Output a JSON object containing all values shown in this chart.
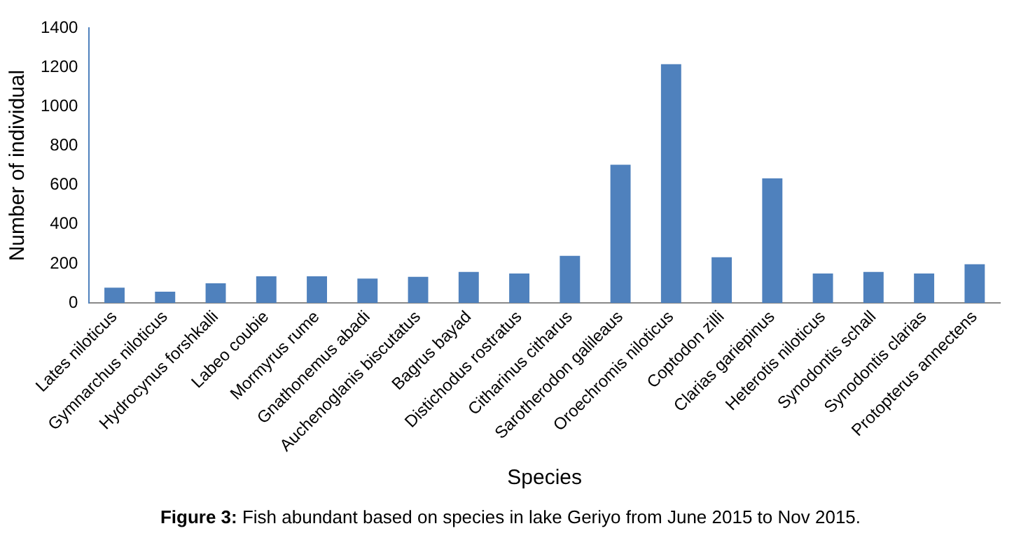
{
  "chart_data": {
    "type": "bar",
    "xlabel": "Species",
    "ylabel": "Number of individual",
    "categories": [
      "Lates niloticus",
      "Gymnarchus niloticus",
      "Hydrocynus forshkalli",
      "Labeo coubie",
      "Mormyrus rume",
      "Gnathonemus abadi",
      "Auchenoglanis biscutatus",
      "Bagrus bayad",
      "Distichodus rostratus",
      "Citharinus citharus",
      "Sarotherodon galileaus",
      "Oroechromis niloticus",
      "Coptodon zilli",
      "Clarias gariepinus",
      "Heterotis niloticus",
      "Synodontis schall",
      "Synodontis clarias",
      "Protopterus annectens"
    ],
    "values": [
      78,
      58,
      100,
      136,
      136,
      124,
      133,
      158,
      150,
      240,
      704,
      1216,
      233,
      634,
      150,
      158,
      150,
      197
    ],
    "color": "#4f81bd",
    "ylim": [
      0,
      1400
    ],
    "yticks": [
      0,
      200,
      400,
      600,
      800,
      1000,
      1200,
      1400
    ],
    "grid": false,
    "legend": false,
    "annotations": [
      "Figure 3: Fish abundant based on species in lake Geriyo from June 2015 to Nov 2015."
    ]
  }
}
